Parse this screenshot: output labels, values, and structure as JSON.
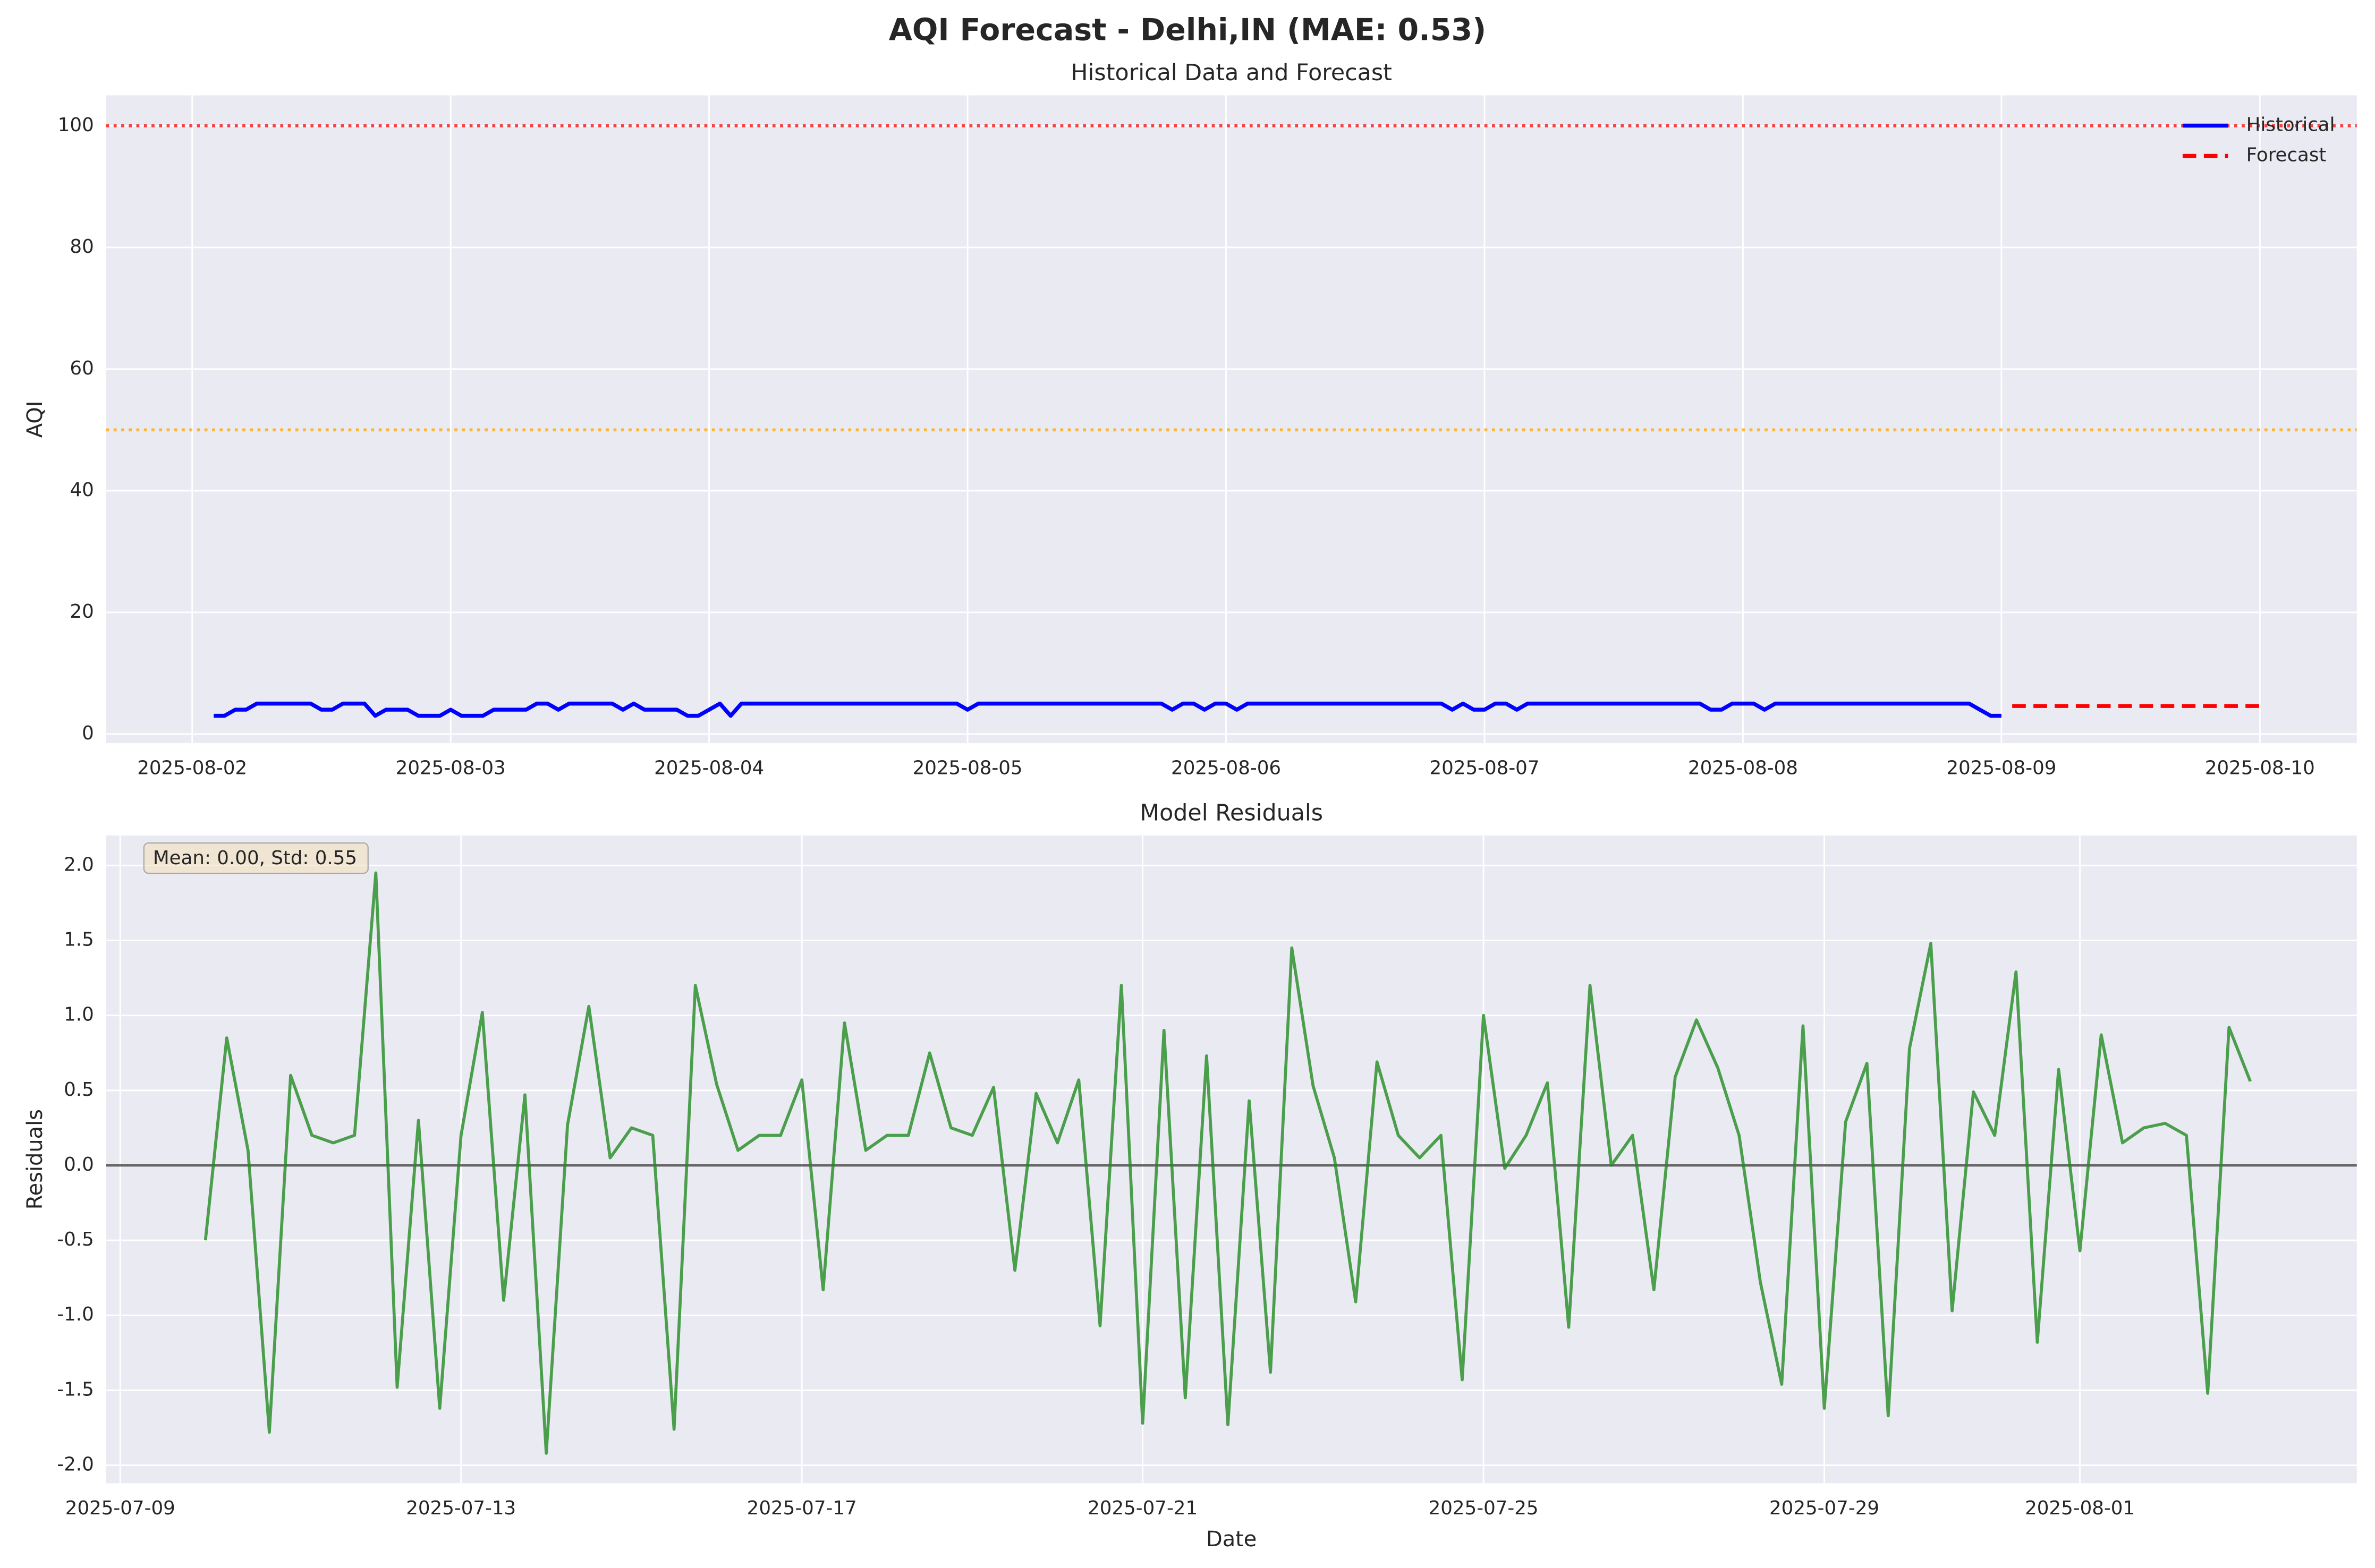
{
  "title": "AQI Forecast - Delhi,IN (MAE: 0.53)",
  "chart_data": [
    {
      "type": "line",
      "title": "Historical Data and Forecast",
      "ylabel": "AQI",
      "xlim": [
        "2025-08-01T16:00",
        "2025-08-10T09:00"
      ],
      "ylim": [
        -1.5,
        105
      ],
      "xticks": [
        "2025-08-02",
        "2025-08-03",
        "2025-08-04",
        "2025-08-05",
        "2025-08-06",
        "2025-08-07",
        "2025-08-08",
        "2025-08-09",
        "2025-08-10"
      ],
      "yticks": [
        0,
        20,
        40,
        60,
        80,
        100
      ],
      "grid": true,
      "legend": "upper right",
      "reference_lines": [
        {
          "value": 50,
          "color": "#ffa500"
        },
        {
          "value": 100,
          "color": "#ff0000"
        }
      ],
      "series": [
        {
          "name": "Historical",
          "color": "#0000ff",
          "style": "solid",
          "x": [
            "2025-08-02T02:00",
            "2025-08-02T03:00",
            "2025-08-02T04:00",
            "2025-08-02T05:00",
            "2025-08-02T06:00",
            "2025-08-02T07:00",
            "2025-08-02T08:00",
            "2025-08-02T09:00",
            "2025-08-02T10:00",
            "2025-08-02T11:00",
            "2025-08-02T12:00",
            "2025-08-02T13:00",
            "2025-08-02T14:00",
            "2025-08-02T15:00",
            "2025-08-02T16:00",
            "2025-08-02T17:00",
            "2025-08-02T18:00",
            "2025-08-02T19:00",
            "2025-08-02T20:00",
            "2025-08-02T21:00",
            "2025-08-02T22:00",
            "2025-08-02T23:00",
            "2025-08-03T00:00",
            "2025-08-03T01:00",
            "2025-08-03T02:00",
            "2025-08-03T03:00",
            "2025-08-03T04:00",
            "2025-08-03T05:00",
            "2025-08-03T06:00",
            "2025-08-03T07:00",
            "2025-08-03T08:00",
            "2025-08-03T09:00",
            "2025-08-03T10:00",
            "2025-08-03T11:00",
            "2025-08-03T12:00",
            "2025-08-03T13:00",
            "2025-08-03T14:00",
            "2025-08-03T15:00",
            "2025-08-03T16:00",
            "2025-08-03T17:00",
            "2025-08-03T18:00",
            "2025-08-03T19:00",
            "2025-08-03T20:00",
            "2025-08-03T21:00",
            "2025-08-03T22:00",
            "2025-08-03T23:00",
            "2025-08-04T00:00",
            "2025-08-04T01:00",
            "2025-08-04T02:00",
            "2025-08-04T03:00",
            "2025-08-04T04:00",
            "2025-08-04T05:00",
            "2025-08-04T06:00",
            "2025-08-04T07:00",
            "2025-08-04T08:00",
            "2025-08-04T09:00",
            "2025-08-04T10:00",
            "2025-08-04T11:00",
            "2025-08-04T12:00",
            "2025-08-04T13:00",
            "2025-08-04T14:00",
            "2025-08-04T15:00",
            "2025-08-04T16:00",
            "2025-08-04T17:00",
            "2025-08-04T18:00",
            "2025-08-04T19:00",
            "2025-08-04T20:00",
            "2025-08-04T21:00",
            "2025-08-04T22:00",
            "2025-08-04T23:00",
            "2025-08-05T00:00",
            "2025-08-05T01:00",
            "2025-08-05T02:00",
            "2025-08-05T03:00",
            "2025-08-05T04:00",
            "2025-08-05T05:00",
            "2025-08-05T06:00",
            "2025-08-05T07:00",
            "2025-08-05T08:00",
            "2025-08-05T09:00",
            "2025-08-05T10:00",
            "2025-08-05T11:00",
            "2025-08-05T12:00",
            "2025-08-05T13:00",
            "2025-08-05T14:00",
            "2025-08-05T15:00",
            "2025-08-05T16:00",
            "2025-08-05T17:00",
            "2025-08-05T18:00",
            "2025-08-05T19:00",
            "2025-08-05T20:00",
            "2025-08-05T21:00",
            "2025-08-05T22:00",
            "2025-08-05T23:00",
            "2025-08-06T00:00",
            "2025-08-06T01:00",
            "2025-08-06T02:00",
            "2025-08-06T03:00",
            "2025-08-06T04:00",
            "2025-08-06T05:00",
            "2025-08-06T06:00",
            "2025-08-06T07:00",
            "2025-08-06T08:00",
            "2025-08-06T09:00",
            "2025-08-06T10:00",
            "2025-08-06T11:00",
            "2025-08-06T12:00",
            "2025-08-06T13:00",
            "2025-08-06T14:00",
            "2025-08-06T15:00",
            "2025-08-06T16:00",
            "2025-08-06T17:00",
            "2025-08-06T18:00",
            "2025-08-06T19:00",
            "2025-08-06T20:00",
            "2025-08-06T21:00",
            "2025-08-06T22:00",
            "2025-08-06T23:00",
            "2025-08-07T00:00",
            "2025-08-07T01:00",
            "2025-08-07T02:00",
            "2025-08-07T03:00",
            "2025-08-07T04:00",
            "2025-08-07T05:00",
            "2025-08-07T06:00",
            "2025-08-07T07:00",
            "2025-08-07T08:00",
            "2025-08-07T09:00",
            "2025-08-07T10:00",
            "2025-08-07T11:00",
            "2025-08-07T12:00",
            "2025-08-07T13:00",
            "2025-08-07T14:00",
            "2025-08-07T15:00",
            "2025-08-07T16:00",
            "2025-08-07T17:00",
            "2025-08-07T18:00",
            "2025-08-07T19:00",
            "2025-08-07T20:00",
            "2025-08-07T21:00",
            "2025-08-07T22:00",
            "2025-08-07T23:00",
            "2025-08-08T00:00",
            "2025-08-08T01:00",
            "2025-08-08T02:00",
            "2025-08-08T03:00",
            "2025-08-08T04:00",
            "2025-08-08T05:00",
            "2025-08-08T06:00",
            "2025-08-08T07:00",
            "2025-08-08T08:00",
            "2025-08-08T09:00",
            "2025-08-08T10:00",
            "2025-08-08T11:00",
            "2025-08-08T12:00",
            "2025-08-08T13:00",
            "2025-08-08T14:00",
            "2025-08-08T15:00",
            "2025-08-08T16:00",
            "2025-08-08T17:00",
            "2025-08-08T18:00",
            "2025-08-08T19:00",
            "2025-08-08T20:00",
            "2025-08-08T21:00",
            "2025-08-08T22:00",
            "2025-08-08T23:00",
            "2025-08-09T00:00"
          ],
          "values": [
            3,
            3,
            4,
            4,
            5,
            5,
            5,
            5,
            5,
            5,
            4,
            4,
            5,
            5,
            5,
            3,
            4,
            4,
            4,
            3,
            3,
            3,
            4,
            3,
            3,
            3,
            4,
            4,
            4,
            4,
            5,
            5,
            4,
            5,
            5,
            5,
            5,
            5,
            4,
            5,
            4,
            4,
            4,
            4,
            3,
            3,
            4,
            5,
            3,
            5,
            5,
            5,
            5,
            5,
            5,
            5,
            5,
            5,
            5,
            5,
            5,
            5,
            5,
            5,
            5,
            5,
            5,
            5,
            5,
            5,
            4,
            5,
            5,
            5,
            5,
            5,
            5,
            5,
            5,
            5,
            5,
            5,
            5,
            5,
            5,
            5,
            5,
            5,
            5,
            4,
            5,
            5,
            4,
            5,
            5,
            4,
            5,
            5,
            5,
            5,
            5,
            5,
            5,
            5,
            5,
            5,
            5,
            5,
            5,
            5,
            5,
            5,
            5,
            5,
            5,
            4,
            5,
            4,
            4,
            5,
            5,
            4,
            5,
            5,
            5,
            5,
            5,
            5,
            5,
            5,
            5,
            5,
            5,
            5,
            5,
            5,
            5,
            5,
            5,
            4,
            4,
            5,
            5,
            5,
            4,
            5,
            5,
            5,
            5,
            5,
            5,
            5,
            5,
            5,
            5,
            5,
            5,
            5,
            5,
            5,
            5,
            5,
            5,
            5,
            4,
            3,
            3
          ]
        },
        {
          "name": "Forecast",
          "color": "#ff0000",
          "style": "dashed",
          "x": [
            "2025-08-09T01:00",
            "2025-08-09T02:00",
            "2025-08-09T03:00",
            "2025-08-09T04:00",
            "2025-08-09T05:00",
            "2025-08-09T06:00",
            "2025-08-09T07:00",
            "2025-08-09T08:00",
            "2025-08-09T09:00",
            "2025-08-09T10:00",
            "2025-08-09T11:00",
            "2025-08-09T12:00",
            "2025-08-09T13:00",
            "2025-08-09T14:00",
            "2025-08-09T15:00",
            "2025-08-09T16:00",
            "2025-08-09T17:00",
            "2025-08-09T18:00",
            "2025-08-09T19:00",
            "2025-08-09T20:00",
            "2025-08-09T21:00",
            "2025-08-09T22:00",
            "2025-08-09T23:00",
            "2025-08-10T00:00"
          ],
          "values": [
            4.6,
            4.6,
            4.6,
            4.6,
            4.6,
            4.6,
            4.6,
            4.6,
            4.6,
            4.6,
            4.6,
            4.6,
            4.6,
            4.6,
            4.6,
            4.6,
            4.6,
            4.6,
            4.6,
            4.6,
            4.6,
            4.6,
            4.6,
            4.6
          ]
        }
      ]
    },
    {
      "type": "line",
      "title": "Model Residuals",
      "xlabel": "Date",
      "ylabel": "Residuals",
      "annotation": "Mean: 0.00, Std: 0.55",
      "xlim": [
        "2025-07-08T20:00",
        "2025-08-04T06:00"
      ],
      "ylim": [
        -2.12,
        2.2
      ],
      "xticks": [
        "2025-07-09",
        "2025-07-13",
        "2025-07-17",
        "2025-07-21",
        "2025-07-25",
        "2025-07-29",
        "2025-08-01"
      ],
      "yticks": [
        {
          "value": -2,
          "label": "-2.0"
        },
        -1.5,
        {
          "value": -1,
          "label": "-1.0"
        },
        -0.5,
        {
          "value": 0,
          "label": "0.0"
        },
        0.5,
        {
          "value": 1,
          "label": "1.0"
        },
        1.5,
        {
          "value": 2,
          "label": "2.0"
        }
      ],
      "grid": true,
      "reference_lines": [
        {
          "value": 0,
          "color": "#000000"
        }
      ],
      "series": [
        {
          "color": "#228b22",
          "style": "solid",
          "x": [
            "2025-07-10T00:00",
            "2025-07-10T06:00",
            "2025-07-10T12:00",
            "2025-07-10T18:00",
            "2025-07-11T00:00",
            "2025-07-11T06:00",
            "2025-07-11T12:00",
            "2025-07-11T18:00",
            "2025-07-12T00:00",
            "2025-07-12T06:00",
            "2025-07-12T12:00",
            "2025-07-12T18:00",
            "2025-07-13T00:00",
            "2025-07-13T06:00",
            "2025-07-13T12:00",
            "2025-07-13T18:00",
            "2025-07-14T00:00",
            "2025-07-14T06:00",
            "2025-07-14T12:00",
            "2025-07-14T18:00",
            "2025-07-15T00:00",
            "2025-07-15T06:00",
            "2025-07-15T12:00",
            "2025-07-15T18:00",
            "2025-07-16T00:00",
            "2025-07-16T06:00",
            "2025-07-16T12:00",
            "2025-07-16T18:00",
            "2025-07-17T00:00",
            "2025-07-17T06:00",
            "2025-07-17T12:00",
            "2025-07-17T18:00",
            "2025-07-18T00:00",
            "2025-07-18T06:00",
            "2025-07-18T12:00",
            "2025-07-18T18:00",
            "2025-07-19T00:00",
            "2025-07-19T06:00",
            "2025-07-19T12:00",
            "2025-07-19T18:00",
            "2025-07-20T00:00",
            "2025-07-20T06:00",
            "2025-07-20T12:00",
            "2025-07-20T18:00",
            "2025-07-21T00:00",
            "2025-07-21T06:00",
            "2025-07-21T12:00",
            "2025-07-21T18:00",
            "2025-07-22T00:00",
            "2025-07-22T06:00",
            "2025-07-22T12:00",
            "2025-07-22T18:00",
            "2025-07-23T00:00",
            "2025-07-23T06:00",
            "2025-07-23T12:00",
            "2025-07-23T18:00",
            "2025-07-24T00:00",
            "2025-07-24T06:00",
            "2025-07-24T12:00",
            "2025-07-24T18:00",
            "2025-07-25T00:00",
            "2025-07-25T06:00",
            "2025-07-25T12:00",
            "2025-07-25T18:00",
            "2025-07-26T00:00",
            "2025-07-26T06:00",
            "2025-07-26T12:00",
            "2025-07-26T18:00",
            "2025-07-27T00:00",
            "2025-07-27T06:00",
            "2025-07-27T12:00",
            "2025-07-27T18:00",
            "2025-07-28T00:00",
            "2025-07-28T06:00",
            "2025-07-28T12:00",
            "2025-07-28T18:00",
            "2025-07-29T00:00",
            "2025-07-29T06:00",
            "2025-07-29T12:00",
            "2025-07-29T18:00",
            "2025-07-30T00:00",
            "2025-07-30T06:00",
            "2025-07-30T12:00",
            "2025-07-30T18:00",
            "2025-07-31T00:00",
            "2025-07-31T06:00",
            "2025-07-31T12:00",
            "2025-07-31T18:00",
            "2025-08-01T00:00",
            "2025-08-01T06:00",
            "2025-08-01T12:00",
            "2025-08-01T18:00",
            "2025-08-02T00:00",
            "2025-08-02T06:00",
            "2025-08-02T12:00",
            "2025-08-02T18:00",
            "2025-08-03T00:00"
          ],
          "values": [
            -0.5,
            0.85,
            0.1,
            -1.78,
            0.6,
            0.2,
            0.15,
            0.2,
            1.95,
            -1.48,
            0.3,
            -1.62,
            0.2,
            1.02,
            -0.9,
            0.47,
            -1.92,
            0.27,
            1.06,
            0.05,
            0.25,
            0.2,
            -1.76,
            1.2,
            0.54,
            0.1,
            0.2,
            0.2,
            0.57,
            -0.83,
            0.95,
            0.1,
            0.2,
            0.2,
            0.75,
            0.25,
            0.2,
            0.52,
            -0.7,
            0.48,
            0.15,
            0.57,
            -1.07,
            1.2,
            -1.72,
            0.9,
            -1.55,
            0.73,
            -1.73,
            0.43,
            -1.38,
            1.45,
            0.53,
            0.05,
            -0.91,
            0.69,
            0.2,
            0.05,
            0.2,
            -1.43,
            1.0,
            -0.02,
            0.2,
            0.55,
            -1.08,
            1.2,
            0.0,
            0.2,
            -0.83,
            0.59,
            0.97,
            0.65,
            0.2,
            -0.78,
            -1.46,
            0.93,
            -1.62,
            0.29,
            0.68,
            -1.67,
            0.78,
            1.48,
            -0.97,
            0.49,
            0.2,
            1.29,
            -1.18,
            0.64,
            -0.57,
            0.87,
            0.15,
            0.25,
            0.28,
            0.2,
            -1.52,
            0.92,
            0.56
          ]
        }
      ]
    }
  ]
}
